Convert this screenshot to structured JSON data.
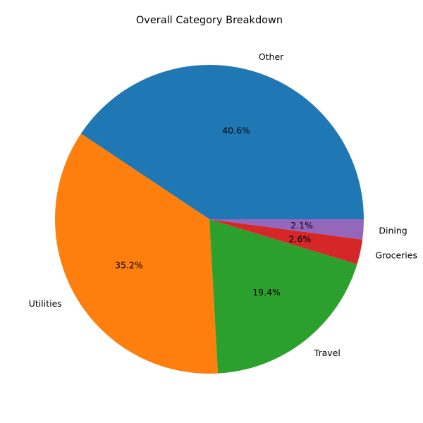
{
  "chart_data": {
    "type": "pie",
    "title": "Overall Category Breakdown",
    "slices": [
      {
        "label": "Other",
        "value": 40.6,
        "pct_label": "40.6%",
        "color": "#1f77b4"
      },
      {
        "label": "Utilities",
        "value": 35.2,
        "pct_label": "35.2%",
        "color": "#ff7f0e"
      },
      {
        "label": "Travel",
        "value": 19.4,
        "pct_label": "19.4%",
        "color": "#2ca02c"
      },
      {
        "label": "Groceries",
        "value": 2.6,
        "pct_label": "2.6%",
        "color": "#d62728"
      },
      {
        "label": "Dining",
        "value": 2.1,
        "pct_label": "2.1%",
        "color": "#9467bd"
      }
    ],
    "start_angle_deg": 0,
    "direction": "counterclockwise"
  }
}
